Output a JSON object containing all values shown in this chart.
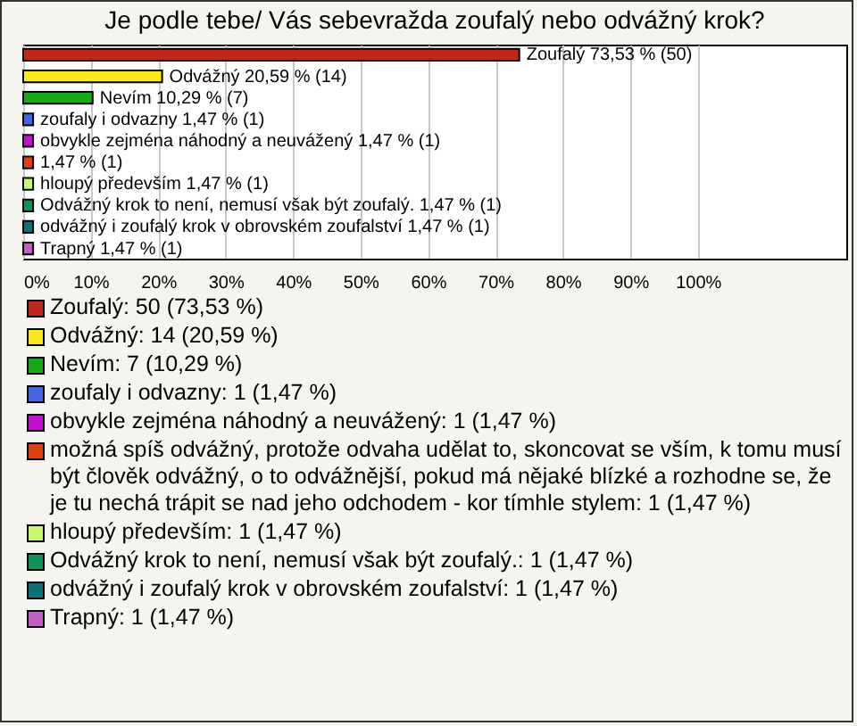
{
  "chart_data": {
    "type": "bar",
    "orientation": "horizontal",
    "stacked": true,
    "title": "Je podle tebe/ Vás sebevražda zoufalý nebo odvážný krok?",
    "categories": [
      null,
      null,
      null,
      null,
      null,
      null,
      null,
      null,
      null,
      null
    ],
    "series": [
      {
        "name": "Zoufalý: 50 (73,53 %)",
        "color": "#c0281e",
        "values": [
          73.53,
          null,
          null,
          null,
          null,
          null,
          null,
          null,
          null,
          null
        ],
        "value_labels": [
          "Zoufalý 73,53 % (50)",
          null,
          null,
          null,
          null,
          null,
          null,
          null,
          null,
          null
        ]
      },
      {
        "name": "Odvážný: 14 (20,59 %)",
        "color": "#f8e81c",
        "values": [
          null,
          20.59,
          null,
          null,
          null,
          null,
          null,
          null,
          null,
          null
        ],
        "value_labels": [
          null,
          "Odvážný 20,59 % (14)",
          null,
          null,
          null,
          null,
          null,
          null,
          null,
          null
        ]
      },
      {
        "name": "Nevím: 7 (10,29 %)",
        "color": "#1aa81a",
        "values": [
          null,
          null,
          10.29,
          null,
          null,
          null,
          null,
          null,
          null,
          null
        ],
        "value_labels": [
          null,
          null,
          "Nevím 10,29 % (7)",
          null,
          null,
          null,
          null,
          null,
          null,
          null
        ]
      },
      {
        "name": "zoufaly i odvazny: 1 (1,47 %)",
        "color": "#4466e0",
        "values": [
          null,
          null,
          null,
          1.47,
          null,
          null,
          null,
          null,
          null,
          null
        ],
        "value_labels": [
          null,
          null,
          null,
          "zoufaly i odvazny 1,47 % (1)",
          null,
          null,
          null,
          null,
          null,
          null
        ]
      },
      {
        "name": "obvykle zejména náhodný a neuvážený: 1 (1,47 %)",
        "color": "#c010d0",
        "values": [
          null,
          null,
          null,
          null,
          1.47,
          null,
          null,
          null,
          null,
          null
        ],
        "value_labels": [
          null,
          null,
          null,
          null,
          "obvykle zejména náhodný a neuvážený 1,47 % (1)",
          null,
          null,
          null,
          null,
          null
        ]
      },
      {
        "name": "možná spíš odvážný, protože odvaha udělat to, skoncovat se vším, k tomu musí být člověk odvážný, o to odvážnější, pokud má nějaké blízké a rozhodne se, že je tu nechá trápit se nad jeho odchodem - kor tímhle stylem: 1 (1,47 %)",
        "color": "#e04010",
        "values": [
          null,
          null,
          null,
          null,
          null,
          1.47,
          null,
          null,
          null,
          null
        ],
        "value_labels": [
          null,
          null,
          null,
          null,
          null,
          "1,47 % (1)",
          null,
          null,
          null,
          null
        ]
      },
      {
        "name": "hloupý především: 1 (1,47 %)",
        "color": "#c8f870",
        "values": [
          null,
          null,
          null,
          null,
          null,
          null,
          1.47,
          null,
          null,
          null
        ],
        "value_labels": [
          null,
          null,
          null,
          null,
          null,
          null,
          "hloupý především 1,47 % (1)",
          null,
          null,
          null
        ]
      },
      {
        "name": "Odvážný krok to není, nemusí však být zoufalý.: 1 (1,47 %)",
        "color": "#10905a",
        "values": [
          null,
          null,
          null,
          null,
          null,
          null,
          null,
          1.47,
          null,
          null
        ],
        "value_labels": [
          null,
          null,
          null,
          null,
          null,
          null,
          null,
          "Odvážný krok to není, nemusí však být zoufalý. 1,47 % (1)",
          null,
          null
        ]
      },
      {
        "name": "odvážný i zoufalý krok v obrovském zoufalství: 1 (1,47 %)",
        "color": "#10707a",
        "values": [
          null,
          null,
          null,
          null,
          null,
          null,
          null,
          null,
          1.47,
          null
        ],
        "value_labels": [
          null,
          null,
          null,
          null,
          null,
          null,
          null,
          null,
          "odvážný i zoufalý krok v obrovském zoufalství 1,47 % (1)",
          null
        ]
      },
      {
        "name": "Trapný: 1 (1,47 %)",
        "color": "#c060c0",
        "values": [
          null,
          null,
          null,
          null,
          null,
          null,
          null,
          null,
          null,
          1.47
        ],
        "value_labels": [
          null,
          null,
          null,
          null,
          null,
          null,
          null,
          null,
          null,
          "Trapný 1,47 % (1)"
        ]
      }
    ],
    "xlim": [
      0,
      122
    ],
    "xticks": [
      {
        "value": 0,
        "label": "0%"
      },
      {
        "value": 10,
        "label": "10%"
      },
      {
        "value": 20,
        "label": "20%"
      },
      {
        "value": 30,
        "label": "30%"
      },
      {
        "value": 40,
        "label": "40%"
      },
      {
        "value": 50,
        "label": "50%"
      },
      {
        "value": 60,
        "label": "60%"
      },
      {
        "value": 70,
        "label": "70%"
      },
      {
        "value": 80,
        "label": "80%"
      },
      {
        "value": 90,
        "label": "90%"
      },
      {
        "value": 100,
        "label": "100%"
      }
    ],
    "grid": "x",
    "legend": "bottom",
    "tick_labels": "x"
  }
}
